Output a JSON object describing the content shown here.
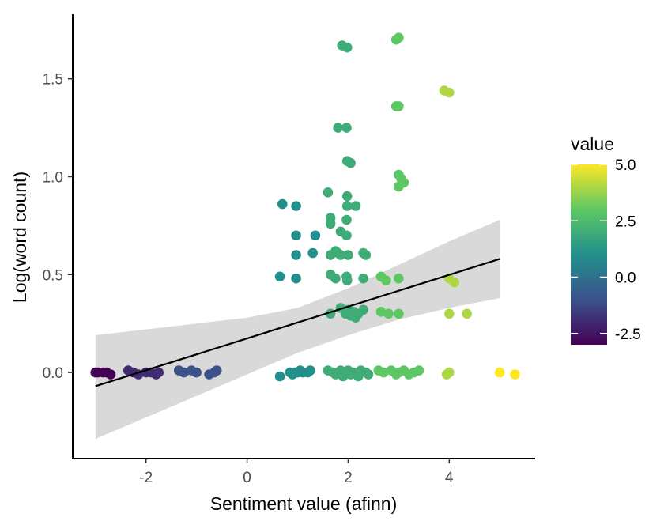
{
  "chart_data": {
    "type": "scatter",
    "xlabel": "Sentiment value (afinn)",
    "ylabel": "Log(word count)",
    "xlim": [
      -3.45,
      5.7
    ],
    "ylim": [
      -0.44,
      1.83
    ],
    "x_ticks": [
      -2,
      0,
      2,
      4
    ],
    "x_tick_labels": [
      "-2",
      "0",
      "2",
      "4"
    ],
    "y_ticks": [
      0.0,
      0.5,
      1.0,
      1.5
    ],
    "y_tick_labels": [
      "0.0",
      "0.5",
      "1.0",
      "1.5"
    ],
    "grid": false,
    "legend": {
      "title": "value",
      "position": "right",
      "type": "colorbar",
      "range": [
        -3,
        5
      ],
      "ticks": [
        5.0,
        2.5,
        0.0,
        -2.5
      ],
      "tick_labels": [
        "5.0",
        "2.5",
        "0.0",
        "-2.5"
      ],
      "colormap": [
        "#440154",
        "#3b528b",
        "#21908c",
        "#5dc863",
        "#fde725"
      ]
    },
    "points": [
      {
        "x": -3.0,
        "y": 0.0,
        "c": -3
      },
      {
        "x": -2.95,
        "y": 0.0,
        "c": -3
      },
      {
        "x": -2.85,
        "y": 0.0,
        "c": -3
      },
      {
        "x": -2.78,
        "y": 0.0,
        "c": -3
      },
      {
        "x": -2.7,
        "y": -0.01,
        "c": -3
      },
      {
        "x": -2.35,
        "y": 0.01,
        "c": -2
      },
      {
        "x": -2.25,
        "y": 0.0,
        "c": -2
      },
      {
        "x": -2.15,
        "y": -0.01,
        "c": -2
      },
      {
        "x": -2.0,
        "y": 0.0,
        "c": -2
      },
      {
        "x": -1.9,
        "y": 0.0,
        "c": -2
      },
      {
        "x": -1.8,
        "y": -0.01,
        "c": -2
      },
      {
        "x": -1.75,
        "y": 0.0,
        "c": -2
      },
      {
        "x": -1.35,
        "y": 0.01,
        "c": -1
      },
      {
        "x": -1.25,
        "y": 0.0,
        "c": -1
      },
      {
        "x": -1.1,
        "y": 0.01,
        "c": -1
      },
      {
        "x": -1.0,
        "y": 0.0,
        "c": -1
      },
      {
        "x": -0.75,
        "y": -0.01,
        "c": -1
      },
      {
        "x": -0.65,
        "y": 0.0,
        "c": -1
      },
      {
        "x": -0.6,
        "y": 0.01,
        "c": -1
      },
      {
        "x": 0.65,
        "y": -0.02,
        "c": 1
      },
      {
        "x": 0.85,
        "y": 0.0,
        "c": 1
      },
      {
        "x": 0.9,
        "y": -0.01,
        "c": 1
      },
      {
        "x": 0.95,
        "y": 0.0,
        "c": 1
      },
      {
        "x": 1.0,
        "y": 0.0,
        "c": 1
      },
      {
        "x": 1.05,
        "y": 0.01,
        "c": 1
      },
      {
        "x": 1.1,
        "y": 0.0,
        "c": 1
      },
      {
        "x": 1.2,
        "y": 0.0,
        "c": 1
      },
      {
        "x": 1.25,
        "y": 0.01,
        "c": 1
      },
      {
        "x": 0.7,
        "y": 0.86,
        "c": 1
      },
      {
        "x": 0.97,
        "y": 0.85,
        "c": 1
      },
      {
        "x": 0.97,
        "y": 0.7,
        "c": 1
      },
      {
        "x": 1.35,
        "y": 0.7,
        "c": 1
      },
      {
        "x": 0.97,
        "y": 0.6,
        "c": 1
      },
      {
        "x": 1.3,
        "y": 0.61,
        "c": 1
      },
      {
        "x": 0.65,
        "y": 0.49,
        "c": 1
      },
      {
        "x": 0.97,
        "y": 0.48,
        "c": 1
      },
      {
        "x": 1.6,
        "y": 0.01,
        "c": 2
      },
      {
        "x": 1.7,
        "y": 0.0,
        "c": 2
      },
      {
        "x": 1.75,
        "y": -0.01,
        "c": 2
      },
      {
        "x": 1.85,
        "y": 0.01,
        "c": 2
      },
      {
        "x": 1.9,
        "y": -0.02,
        "c": 2
      },
      {
        "x": 1.95,
        "y": 0.0,
        "c": 2
      },
      {
        "x": 2.0,
        "y": 0.01,
        "c": 2
      },
      {
        "x": 2.05,
        "y": -0.01,
        "c": 2
      },
      {
        "x": 2.1,
        "y": 0.0,
        "c": 2
      },
      {
        "x": 2.2,
        "y": -0.02,
        "c": 2
      },
      {
        "x": 2.25,
        "y": 0.01,
        "c": 2
      },
      {
        "x": 2.35,
        "y": 0.0,
        "c": 2
      },
      {
        "x": 2.4,
        "y": -0.01,
        "c": 2
      },
      {
        "x": 1.88,
        "y": 1.67,
        "c": 2
      },
      {
        "x": 1.98,
        "y": 1.66,
        "c": 2
      },
      {
        "x": 1.8,
        "y": 1.25,
        "c": 2
      },
      {
        "x": 1.97,
        "y": 1.25,
        "c": 2
      },
      {
        "x": 1.98,
        "y": 1.08,
        "c": 2
      },
      {
        "x": 2.05,
        "y": 1.07,
        "c": 2
      },
      {
        "x": 1.6,
        "y": 0.92,
        "c": 2
      },
      {
        "x": 1.98,
        "y": 0.9,
        "c": 2
      },
      {
        "x": 1.98,
        "y": 0.85,
        "c": 2
      },
      {
        "x": 2.15,
        "y": 0.85,
        "c": 2
      },
      {
        "x": 1.65,
        "y": 0.79,
        "c": 2
      },
      {
        "x": 1.65,
        "y": 0.76,
        "c": 2
      },
      {
        "x": 1.97,
        "y": 0.78,
        "c": 2
      },
      {
        "x": 1.85,
        "y": 0.72,
        "c": 2
      },
      {
        "x": 1.97,
        "y": 0.7,
        "c": 2
      },
      {
        "x": 1.65,
        "y": 0.6,
        "c": 2
      },
      {
        "x": 1.75,
        "y": 0.62,
        "c": 2
      },
      {
        "x": 1.8,
        "y": 0.61,
        "c": 2
      },
      {
        "x": 1.85,
        "y": 0.6,
        "c": 2
      },
      {
        "x": 2.0,
        "y": 0.6,
        "c": 2
      },
      {
        "x": 2.3,
        "y": 0.61,
        "c": 2
      },
      {
        "x": 2.35,
        "y": 0.6,
        "c": 2
      },
      {
        "x": 1.65,
        "y": 0.5,
        "c": 2
      },
      {
        "x": 1.75,
        "y": 0.48,
        "c": 2
      },
      {
        "x": 1.97,
        "y": 0.49,
        "c": 2
      },
      {
        "x": 1.98,
        "y": 0.47,
        "c": 2
      },
      {
        "x": 2.3,
        "y": 0.48,
        "c": 2
      },
      {
        "x": 1.85,
        "y": 0.33,
        "c": 2
      },
      {
        "x": 1.95,
        "y": 0.3,
        "c": 2
      },
      {
        "x": 2.0,
        "y": 0.32,
        "c": 2
      },
      {
        "x": 2.05,
        "y": 0.29,
        "c": 2
      },
      {
        "x": 2.1,
        "y": 0.31,
        "c": 2
      },
      {
        "x": 2.15,
        "y": 0.28,
        "c": 2
      },
      {
        "x": 2.2,
        "y": 0.3,
        "c": 2
      },
      {
        "x": 2.3,
        "y": 0.32,
        "c": 2
      },
      {
        "x": 1.65,
        "y": 0.3,
        "c": 2
      },
      {
        "x": 2.6,
        "y": 0.01,
        "c": 3
      },
      {
        "x": 2.7,
        "y": 0.0,
        "c": 3
      },
      {
        "x": 2.85,
        "y": 0.01,
        "c": 3
      },
      {
        "x": 2.95,
        "y": -0.01,
        "c": 3
      },
      {
        "x": 3.0,
        "y": 0.0,
        "c": 3
      },
      {
        "x": 3.1,
        "y": 0.01,
        "c": 3
      },
      {
        "x": 3.2,
        "y": -0.01,
        "c": 3
      },
      {
        "x": 3.3,
        "y": 0.0,
        "c": 3
      },
      {
        "x": 3.4,
        "y": 0.01,
        "c": 3
      },
      {
        "x": 2.95,
        "y": 1.7,
        "c": 3
      },
      {
        "x": 3.0,
        "y": 1.71,
        "c": 3
      },
      {
        "x": 2.95,
        "y": 1.36,
        "c": 3
      },
      {
        "x": 3.0,
        "y": 1.36,
        "c": 3
      },
      {
        "x": 3.0,
        "y": 1.01,
        "c": 3
      },
      {
        "x": 3.05,
        "y": 0.99,
        "c": 3
      },
      {
        "x": 3.1,
        "y": 0.97,
        "c": 3
      },
      {
        "x": 3.0,
        "y": 0.95,
        "c": 3
      },
      {
        "x": 2.65,
        "y": 0.49,
        "c": 3
      },
      {
        "x": 2.75,
        "y": 0.47,
        "c": 3
      },
      {
        "x": 3.0,
        "y": 0.48,
        "c": 3
      },
      {
        "x": 2.65,
        "y": 0.31,
        "c": 3
      },
      {
        "x": 2.8,
        "y": 0.3,
        "c": 3
      },
      {
        "x": 3.0,
        "y": 0.3,
        "c": 3
      },
      {
        "x": 3.9,
        "y": 1.44,
        "c": 4
      },
      {
        "x": 4.0,
        "y": 1.43,
        "c": 4
      },
      {
        "x": 4.0,
        "y": 0.48,
        "c": 4
      },
      {
        "x": 4.1,
        "y": 0.46,
        "c": 4
      },
      {
        "x": 4.0,
        "y": 0.3,
        "c": 4
      },
      {
        "x": 4.35,
        "y": 0.3,
        "c": 4
      },
      {
        "x": 3.95,
        "y": -0.01,
        "c": 4
      },
      {
        "x": 4.0,
        "y": 0.0,
        "c": 4
      },
      {
        "x": 5.0,
        "y": 0.0,
        "c": 5
      },
      {
        "x": 5.3,
        "y": -0.01,
        "c": 5
      }
    ],
    "trend_line": {
      "x": [
        -3,
        5
      ],
      "y": [
        -0.07,
        0.58
      ]
    },
    "confidence_band": {
      "x": [
        -3,
        -2,
        -1,
        0,
        1,
        2,
        3,
        4,
        5
      ],
      "lower": [
        -0.34,
        -0.23,
        -0.12,
        -0.01,
        0.1,
        0.19,
        0.27,
        0.33,
        0.38
      ],
      "upper": [
        0.19,
        0.22,
        0.25,
        0.28,
        0.33,
        0.43,
        0.55,
        0.67,
        0.78
      ]
    }
  }
}
